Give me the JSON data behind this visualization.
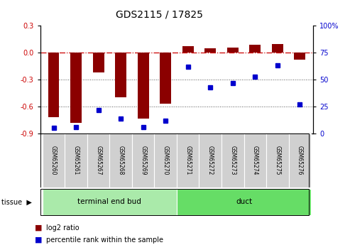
{
  "title": "GDS2115 / 17825",
  "samples": [
    "GSM65260",
    "GSM65261",
    "GSM65267",
    "GSM65268",
    "GSM65269",
    "GSM65270",
    "GSM65271",
    "GSM65272",
    "GSM65273",
    "GSM65274",
    "GSM65275",
    "GSM65276"
  ],
  "log2_ratio": [
    -0.72,
    -0.78,
    -0.22,
    -0.5,
    -0.73,
    -0.57,
    0.07,
    0.05,
    0.06,
    0.09,
    0.1,
    -0.08
  ],
  "percentile_rank": [
    5,
    6,
    22,
    14,
    6,
    12,
    62,
    43,
    47,
    53,
    63,
    27
  ],
  "groups": [
    {
      "label": "terminal end bud",
      "start": 0,
      "end": 6,
      "color": "#90EE90"
    },
    {
      "label": "duct",
      "start": 6,
      "end": 12,
      "color": "#5CD65C"
    }
  ],
  "ylim_left": [
    -0.9,
    0.3
  ],
  "ylim_right": [
    0,
    100
  ],
  "yticks_left": [
    -0.9,
    -0.6,
    -0.3,
    0.0,
    0.3
  ],
  "yticks_right": [
    0,
    25,
    50,
    75,
    100
  ],
  "ytick_labels_right": [
    "0",
    "25",
    "50",
    "75",
    "100%"
  ],
  "bar_color": "#8B0000",
  "dot_color": "#0000CD",
  "hline_color": "#CC0000",
  "dotted_line_color": "#555555",
  "bg_color": "#FFFFFF",
  "plot_bg_color": "#FFFFFF",
  "tissue_label": "tissue",
  "legend_log2": "log2 ratio",
  "legend_pct": "percentile rank within the sample",
  "bar_width": 0.5,
  "sample_box_color": "#D0D0D0",
  "tissue_group1_color": "#AAEAAA",
  "tissue_group2_color": "#66DD66"
}
